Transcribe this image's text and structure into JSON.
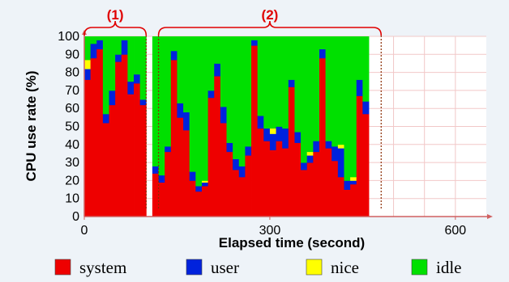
{
  "chart_data": {
    "type": "bar",
    "stacked": true,
    "ylabel": "CPU use rate (%)",
    "xlabel": "Elapsed time (second)",
    "xlim": [
      0,
      650
    ],
    "ylim": [
      0,
      100
    ],
    "x_ticks": [
      0,
      300,
      600
    ],
    "y_ticks": [
      0,
      10,
      20,
      30,
      40,
      50,
      60,
      70,
      80,
      90,
      100
    ],
    "grid": true,
    "legend_placement": "bottom",
    "bar_width_seconds": 10,
    "x": [
      0,
      10,
      20,
      30,
      40,
      50,
      60,
      70,
      80,
      90,
      100,
      110,
      120,
      130,
      140,
      150,
      160,
      170,
      180,
      190,
      200,
      210,
      220,
      230,
      240,
      250,
      260,
      270,
      280,
      290,
      300,
      310,
      320,
      330,
      340,
      350,
      360,
      370,
      380,
      390,
      400,
      410,
      420,
      430,
      440,
      450,
      460,
      470
    ],
    "series": [
      {
        "name": "system",
        "color": "#ee0000",
        "values": [
          76,
          88,
          93,
          52,
          62,
          86,
          90,
          68,
          74,
          62,
          0,
          24,
          19,
          36,
          87,
          55,
          48,
          20,
          14,
          17,
          66,
          78,
          52,
          36,
          26,
          22,
          34,
          95,
          49,
          42,
          37,
          42,
          38,
          72,
          41,
          26,
          30,
          36,
          88,
          38,
          31,
          22,
          15,
          18,
          67,
          57,
          0,
          0
        ]
      },
      {
        "name": "user",
        "color": "#0022dd",
        "values": [
          6,
          8,
          5,
          5,
          8,
          4,
          8,
          7,
          5,
          3,
          0,
          4,
          4,
          3,
          5,
          8,
          10,
          5,
          3,
          2,
          4,
          7,
          9,
          5,
          6,
          6,
          5,
          3,
          7,
          7,
          9,
          8,
          11,
          4,
          6,
          4,
          4,
          6,
          5,
          4,
          8,
          16,
          5,
          2,
          9,
          7,
          0,
          0
        ]
      },
      {
        "name": "nice",
        "color": "#ffff00",
        "values": [
          5,
          0,
          0,
          0,
          0,
          0,
          0,
          0,
          0,
          0,
          0,
          0,
          0,
          0,
          0,
          0,
          0,
          0,
          0,
          1,
          0,
          0,
          0,
          0,
          0,
          0,
          0,
          0,
          0,
          0,
          3,
          0,
          0,
          0,
          0,
          0,
          2,
          0,
          0,
          0,
          0,
          2,
          0,
          2,
          0,
          0,
          0,
          0
        ]
      },
      {
        "name": "idle",
        "color": "#00e000",
        "values": [
          13,
          4,
          2,
          43,
          30,
          10,
          2,
          25,
          21,
          35,
          0,
          72,
          77,
          61,
          8,
          37,
          42,
          75,
          83,
          80,
          30,
          15,
          39,
          59,
          68,
          72,
          61,
          2,
          44,
          51,
          51,
          50,
          51,
          24,
          53,
          70,
          64,
          58,
          7,
          58,
          61,
          60,
          80,
          78,
          24,
          36,
          0,
          0
        ]
      }
    ],
    "annotations": [
      {
        "text": "(1)",
        "x_range": [
          0,
          100
        ]
      },
      {
        "text": "(2)",
        "x_range": [
          120,
          480
        ]
      }
    ]
  }
}
